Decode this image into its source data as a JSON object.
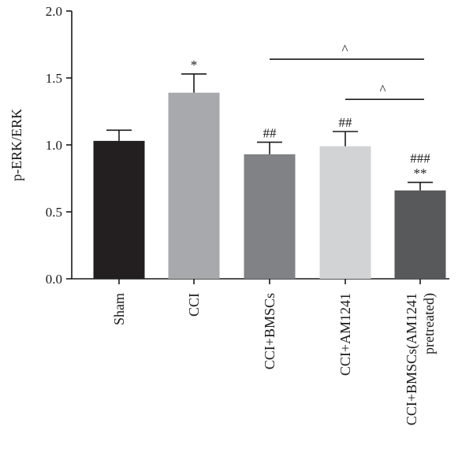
{
  "chart_data": {
    "type": "bar",
    "title": "",
    "ylabel": "p-ERK/ERK",
    "xlabel": "",
    "ylim": [
      0,
      2.0
    ],
    "yticks": [
      "0.0",
      "0.5",
      "1.0",
      "1.5",
      "2.0"
    ],
    "grid": false,
    "legend": "none",
    "categories": [
      [
        "Sham"
      ],
      [
        "CCI"
      ],
      [
        "CCI+BMSCs"
      ],
      [
        "CCI+AM1241"
      ],
      [
        "CCI+BMSCs(AM1241",
        "pretreated)"
      ]
    ],
    "values": [
      1.03,
      1.39,
      0.93,
      0.99,
      0.66
    ],
    "errors": [
      0.08,
      0.14,
      0.09,
      0.11,
      0.06
    ],
    "colors": [
      "#231f20",
      "#a7a9ac",
      "#808285",
      "#d1d3d4",
      "#58595b"
    ],
    "annotations": [
      [
        "",
        "",
        ""
      ],
      [
        "*"
      ],
      [
        "##"
      ],
      [
        "##"
      ],
      [
        "###",
        "**"
      ]
    ],
    "comparisons": [
      {
        "from": 2,
        "to": 4,
        "label": "^",
        "y": 1.64
      },
      {
        "from": 3,
        "to": 4,
        "label": "^",
        "y": 1.34
      }
    ]
  }
}
